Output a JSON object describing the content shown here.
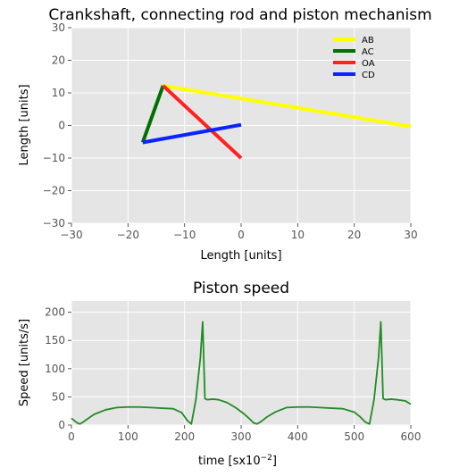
{
  "chart_data": [
    {
      "type": "line",
      "title": "Crankshaft, connecting rod and piston mechanism",
      "xlabel": "Length [units]",
      "ylabel": "Length [units]",
      "xlim": [
        -30,
        30
      ],
      "ylim": [
        -30,
        30
      ],
      "xticks": [
        -30,
        -20,
        -10,
        0,
        10,
        20,
        30
      ],
      "yticks": [
        -30,
        -20,
        -10,
        0,
        10,
        20,
        30
      ],
      "xtick_labels": [
        "−30",
        "−20",
        "−10",
        "0",
        "10",
        "20",
        "30"
      ],
      "ytick_labels": [
        "−30",
        "−20",
        "−10",
        "0",
        "10",
        "20",
        "30"
      ],
      "grid": true,
      "legend": "top-right",
      "series": [
        {
          "name": "AB",
          "color": "#ffff00",
          "x": [
            -13.8,
            30
          ],
          "y": [
            12.2,
            -0.3
          ]
        },
        {
          "name": "AC",
          "color": "#007000",
          "x": [
            -13.8,
            -17.4
          ],
          "y": [
            12.2,
            -5.2
          ]
        },
        {
          "name": "OA",
          "color": "#ff2020",
          "x": [
            -13.8,
            0
          ],
          "y": [
            12.2,
            -10
          ]
        },
        {
          "name": "CD",
          "color": "#0a24ff",
          "x": [
            -17.4,
            0
          ],
          "y": [
            -5.2,
            0.2
          ]
        }
      ]
    },
    {
      "type": "line",
      "title": "Piston speed",
      "xlabel": "time [sx10",
      "xlabel_sup": "−2",
      "xlabel_end": "]",
      "ylabel": "Speed  [units/s]",
      "xlim": [
        0,
        600
      ],
      "ylim": [
        0,
        220
      ],
      "xticks": [
        0,
        100,
        200,
        300,
        400,
        500,
        600
      ],
      "yticks": [
        0,
        50,
        100,
        150,
        200
      ],
      "xtick_labels": [
        "0",
        "100",
        "200",
        "300",
        "400",
        "500",
        "600"
      ],
      "ytick_labels": [
        "0",
        "50",
        "100",
        "150",
        "200"
      ],
      "grid": true,
      "series": [
        {
          "color": "#228b22",
          "x": [
            0,
            5,
            10,
            15,
            20,
            30,
            40,
            60,
            80,
            100,
            120,
            140,
            160,
            180,
            195,
            205,
            212,
            220,
            228,
            232,
            236,
            240,
            250,
            260,
            275,
            290,
            305,
            315,
            322,
            328,
            335,
            345,
            360,
            380,
            400,
            420,
            440,
            460,
            480,
            500,
            510,
            520,
            527,
            535,
            543,
            547,
            551,
            555,
            565,
            575,
            590,
            600
          ],
          "y": [
            12,
            8,
            4,
            2,
            5,
            12,
            19,
            27,
            31,
            32,
            32,
            31,
            30,
            29,
            22,
            8,
            2,
            45,
            120,
            183,
            47,
            45,
            46,
            45,
            40,
            31,
            20,
            11,
            4,
            2,
            6,
            14,
            23,
            31,
            32,
            32,
            31,
            30,
            29,
            23,
            15,
            5,
            2,
            45,
            120,
            183,
            47,
            45,
            46,
            45,
            43,
            37
          ]
        }
      ]
    }
  ]
}
